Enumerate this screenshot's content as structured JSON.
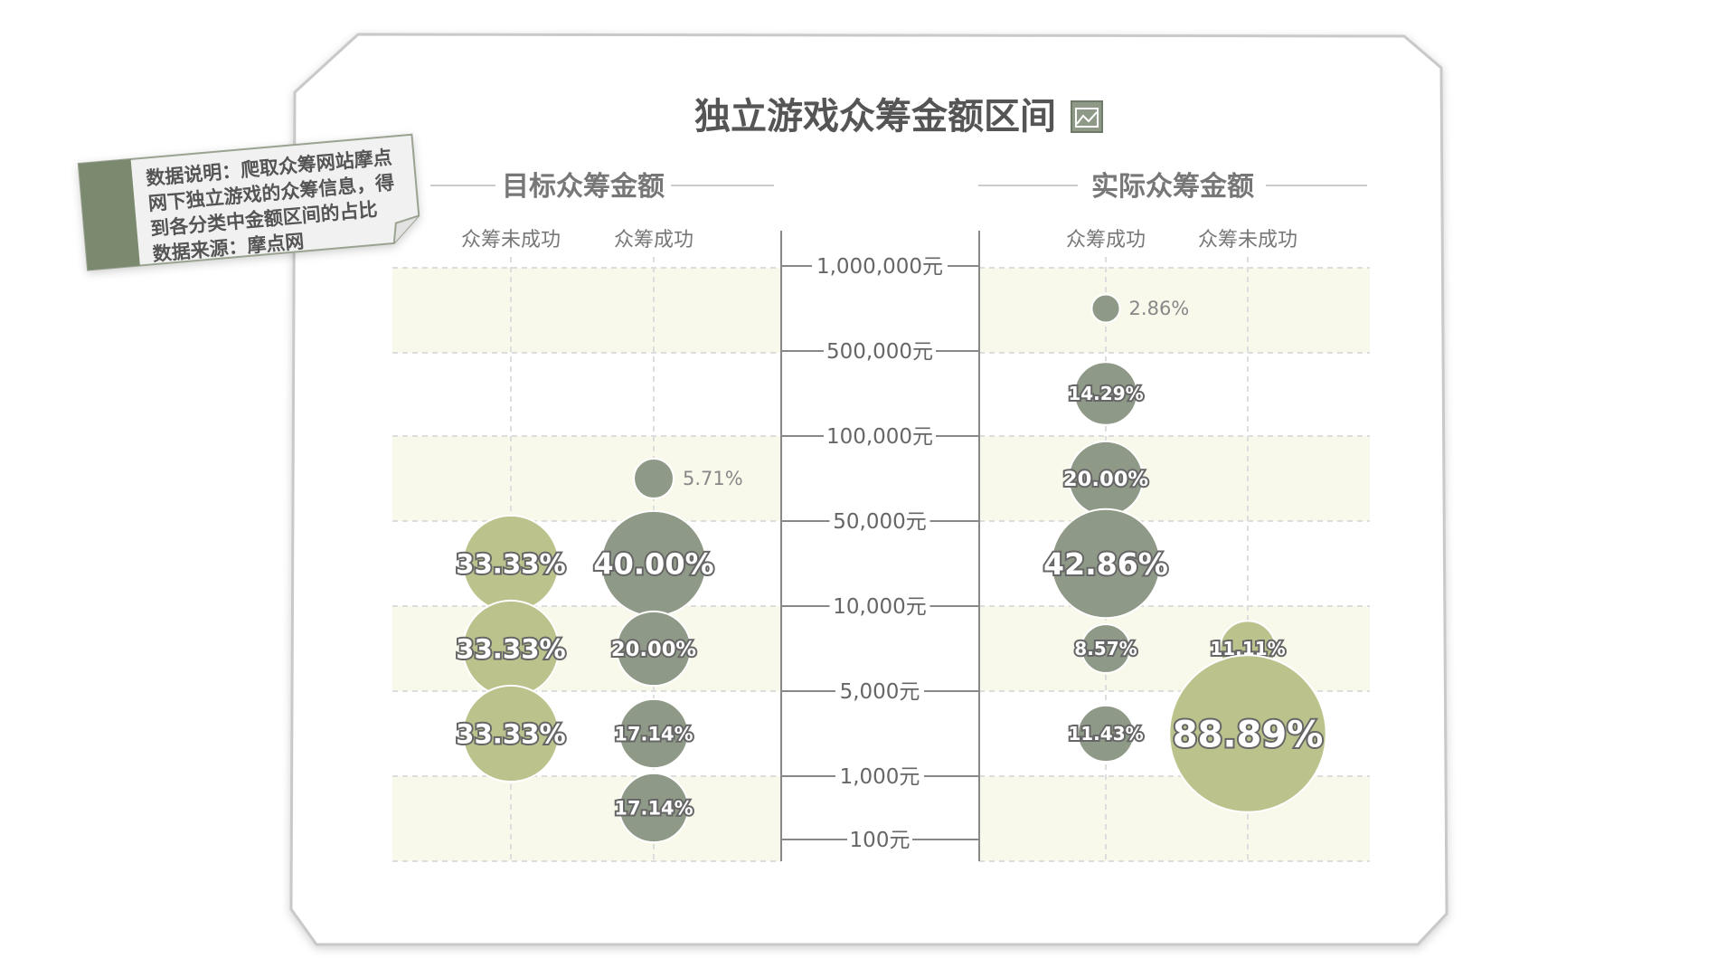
{
  "title": "独立游戏众筹金额区间",
  "title_icon": "chart-icon",
  "note": {
    "lines": [
      "数据说明：爬取众筹网站摩点",
      "网下独立游戏的众筹信息，得",
      "到各分类中金额区间的占比",
      "数据来源：摩点网"
    ]
  },
  "colors": {
    "success": "#8f9987",
    "fail": "#bcc28c",
    "band": "#f8f8eb",
    "line": "#888888",
    "grid": "#dddddd"
  },
  "chart_data": [
    {
      "type": "scatter",
      "title": "目标众筹金额",
      "columns": [
        "众筹未成功",
        "众筹成功"
      ],
      "y_ticks": [
        "1,000,000元",
        "500,000元",
        "100,000元",
        "50,000元",
        "10,000元",
        "5,000元",
        "1,000元",
        "100元"
      ],
      "points": [
        {
          "column": "众筹成功",
          "range": "100,000元-50,000元",
          "value": 5.71,
          "label": "5.71%"
        },
        {
          "column": "众筹成功",
          "range": "50,000元-10,000元",
          "value": 40.0,
          "label": "40.00%"
        },
        {
          "column": "众筹成功",
          "range": "10,000元-5,000元",
          "value": 20.0,
          "label": "20.00%"
        },
        {
          "column": "众筹成功",
          "range": "5,000元-1,000元",
          "value": 17.14,
          "label": "17.14%"
        },
        {
          "column": "众筹成功",
          "range": "1,000元-100元",
          "value": 17.14,
          "label": "17.14%"
        },
        {
          "column": "众筹未成功",
          "range": "50,000元-10,000元",
          "value": 33.33,
          "label": "33.33%"
        },
        {
          "column": "众筹未成功",
          "range": "10,000元-5,000元",
          "value": 33.33,
          "label": "33.33%"
        },
        {
          "column": "众筹未成功",
          "range": "5,000元-1,000元",
          "value": 33.33,
          "label": "33.33%"
        }
      ]
    },
    {
      "type": "scatter",
      "title": "实际众筹金额",
      "columns": [
        "众筹成功",
        "众筹未成功"
      ],
      "y_ticks": [
        "1,000,000元",
        "500,000元",
        "100,000元",
        "50,000元",
        "10,000元",
        "5,000元",
        "1,000元",
        "100元"
      ],
      "points": [
        {
          "column": "众筹成功",
          "range": "1,000,000元-500,000元",
          "value": 2.86,
          "label": "2.86%"
        },
        {
          "column": "众筹成功",
          "range": "500,000元-100,000元",
          "value": 14.29,
          "label": "14.29%"
        },
        {
          "column": "众筹成功",
          "range": "100,000元-50,000元",
          "value": 20.0,
          "label": "20.00%"
        },
        {
          "column": "众筹成功",
          "range": "50,000元-10,000元",
          "value": 42.86,
          "label": "42.86%"
        },
        {
          "column": "众筹成功",
          "range": "10,000元-5,000元",
          "value": 8.57,
          "label": "8.57%"
        },
        {
          "column": "众筹成功",
          "range": "5,000元-1,000元",
          "value": 11.43,
          "label": "11.43%"
        },
        {
          "column": "众筹未成功",
          "range": "10,000元-5,000元",
          "value": 11.11,
          "label": "11.11%"
        },
        {
          "column": "众筹未成功",
          "range": "5,000元-1,000元",
          "value": 88.89,
          "label": "88.89%"
        }
      ]
    }
  ]
}
